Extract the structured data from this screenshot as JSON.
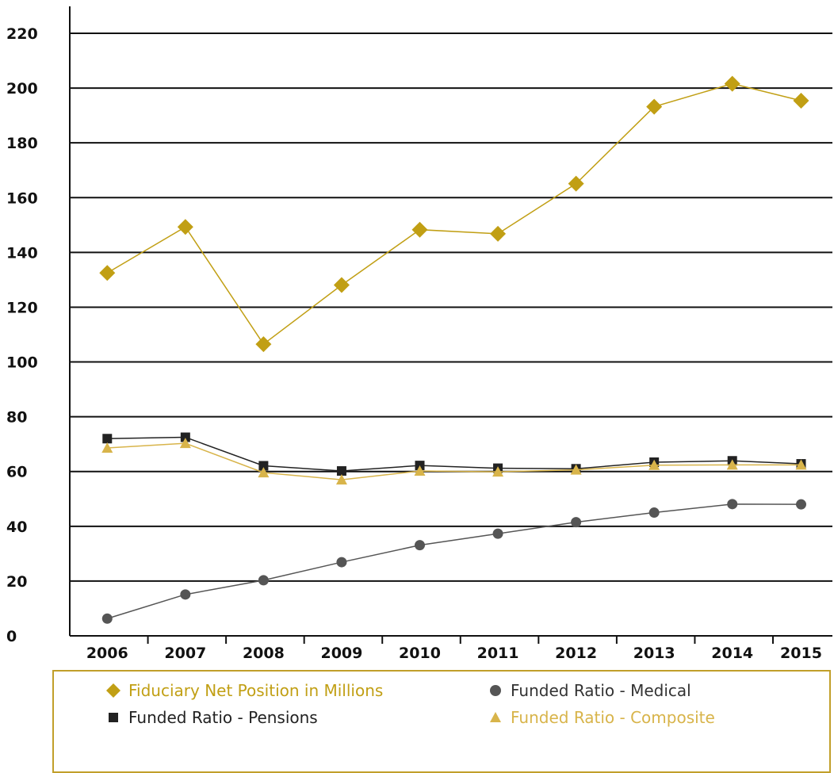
{
  "chart_data": {
    "type": "line",
    "x": [
      "2006",
      "2007",
      "2008",
      "2009",
      "2010",
      "2011",
      "2012",
      "2013",
      "2014",
      "2015"
    ],
    "ylim": [
      0,
      220
    ],
    "yticks": [
      0,
      20,
      40,
      60,
      80,
      100,
      120,
      140,
      160,
      180,
      200,
      220
    ],
    "grid": true,
    "legend_position": "bottom",
    "series": [
      {
        "name": "Fiduciary Net Position in Millions",
        "marker": "diamond",
        "color": "#c19f14",
        "values": [
          132.5,
          149.3,
          106.5,
          128.1,
          148.3,
          146.8,
          165.1,
          193.2,
          201.6,
          195.4
        ]
      },
      {
        "name": "Funded Ratio - Pensions",
        "marker": "square",
        "color": "#222222",
        "values": [
          72.0,
          72.5,
          62.1,
          60.2,
          62.2,
          61.2,
          61.0,
          63.4,
          63.9,
          62.8
        ]
      },
      {
        "name": "Funded Ratio - Composite",
        "marker": "triangle",
        "color": "#d8b44a",
        "values": [
          68.6,
          70.3,
          59.6,
          57.0,
          60.2,
          59.9,
          60.6,
          62.3,
          62.4,
          62.4
        ]
      },
      {
        "name": "Funded Ratio - Medical",
        "marker": "circle",
        "color": "#555555",
        "values": [
          6.3,
          15.1,
          20.3,
          26.9,
          33.1,
          37.3,
          41.5,
          45.0,
          48.1,
          48.0
        ]
      }
    ]
  },
  "legend": {
    "fiduciary": "Fiduciary Net Position in Millions",
    "medical": "Funded Ratio - Medical",
    "pensions": "Funded Ratio - Pensions",
    "composite": "Funded Ratio - Composite"
  }
}
